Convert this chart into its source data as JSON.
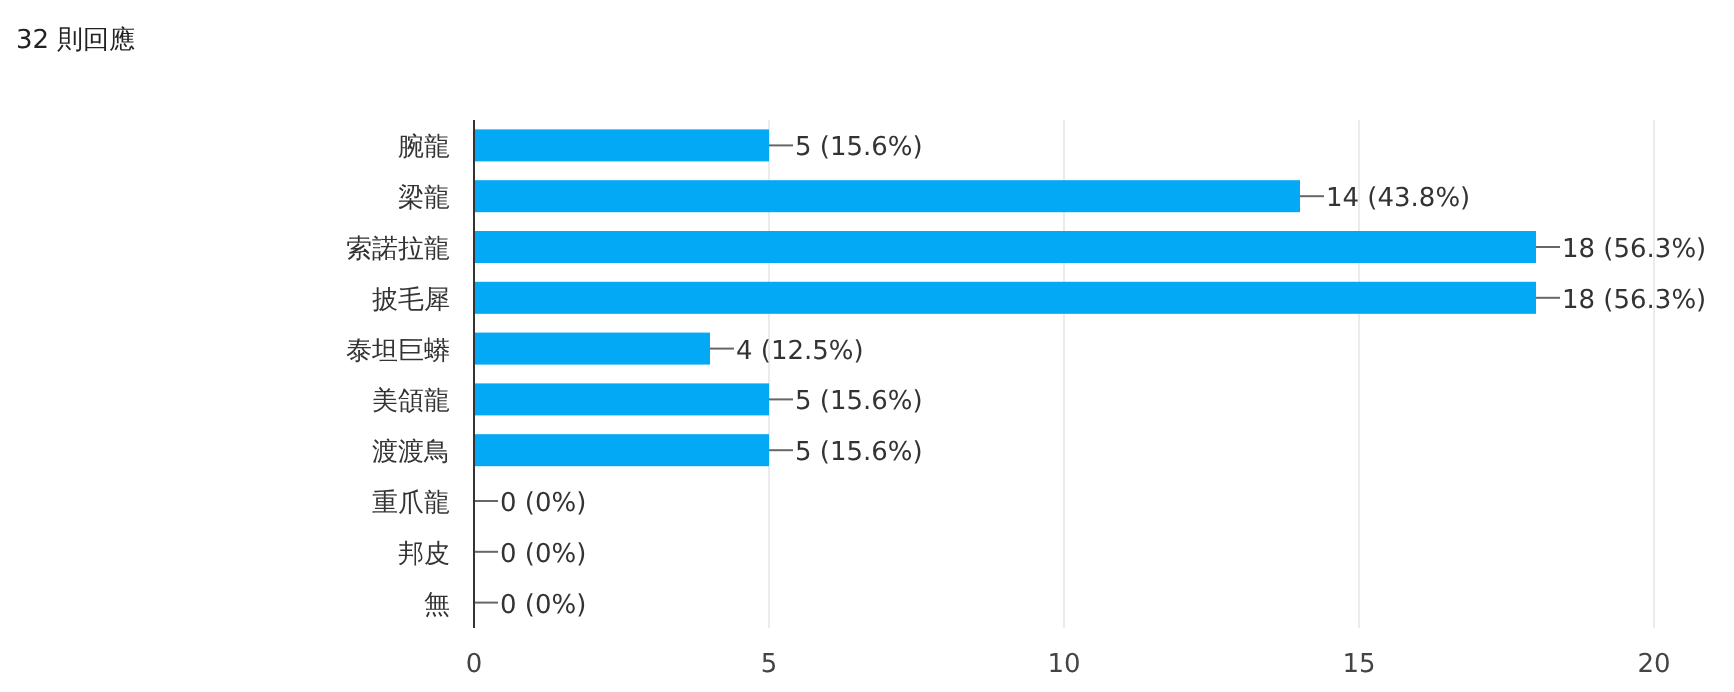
{
  "chart_data": {
    "type": "bar",
    "orientation": "horizontal",
    "title": "32 則回應",
    "categories": [
      "腕龍",
      "梁龍",
      "索諾拉龍",
      "披毛犀",
      "泰坦巨蟒",
      "美頜龍",
      "渡渡鳥",
      "重爪龍",
      "邦皮",
      "無"
    ],
    "values": [
      5,
      14,
      18,
      18,
      4,
      5,
      5,
      0,
      0,
      0
    ],
    "value_labels": [
      "5 (15.6%)",
      "14 (43.8%)",
      "18 (56.3%)",
      "18 (56.3%)",
      "4 (12.5%)",
      "5 (15.6%)",
      "5 (15.6%)",
      "0 (0%)",
      "0 (0%)",
      "0 (0%)"
    ],
    "color": "#03a9f4",
    "xlim": [
      0,
      20
    ],
    "xticks": [
      0,
      5,
      10,
      15,
      20
    ],
    "grid": "x"
  }
}
